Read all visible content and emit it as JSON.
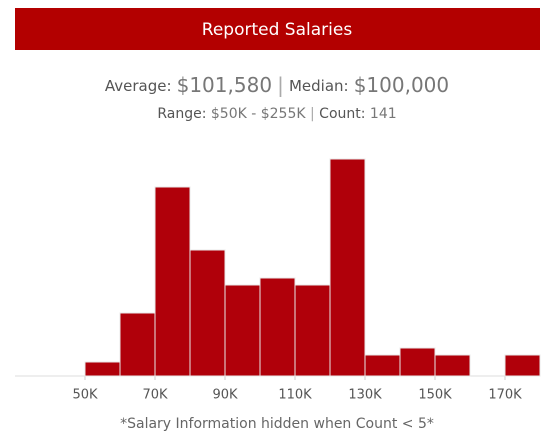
{
  "chart_data": {
    "type": "histogram",
    "title": "Reported Salaries",
    "stats": {
      "average_label": "Average:",
      "average": "$101,580",
      "separator": "|",
      "median_label": "Median:",
      "median": "$100,000",
      "range_label": "Range:",
      "range": "$50K - $255K",
      "count_label": "Count:",
      "count": "141"
    },
    "bins": [
      50000,
      60000,
      70000,
      80000,
      90000,
      100000,
      110000,
      120000,
      130000,
      140000,
      150000,
      160000,
      170000,
      180000
    ],
    "values": [
      2,
      9,
      27,
      18,
      13,
      14,
      13,
      31,
      3,
      4,
      3,
      0,
      3
    ],
    "color": "#b0000a",
    "xlim": [
      30000,
      180000
    ],
    "xticks": [
      {
        "value": 50000,
        "label": "50K"
      },
      {
        "value": 70000,
        "label": "70K"
      },
      {
        "value": 90000,
        "label": "90K"
      },
      {
        "value": 110000,
        "label": "110K"
      },
      {
        "value": 130000,
        "label": "130K"
      },
      {
        "value": 150000,
        "label": "150K"
      },
      {
        "value": 170000,
        "label": "170K"
      }
    ],
    "footnote": "*Salary Information hidden when Count < 5*"
  }
}
